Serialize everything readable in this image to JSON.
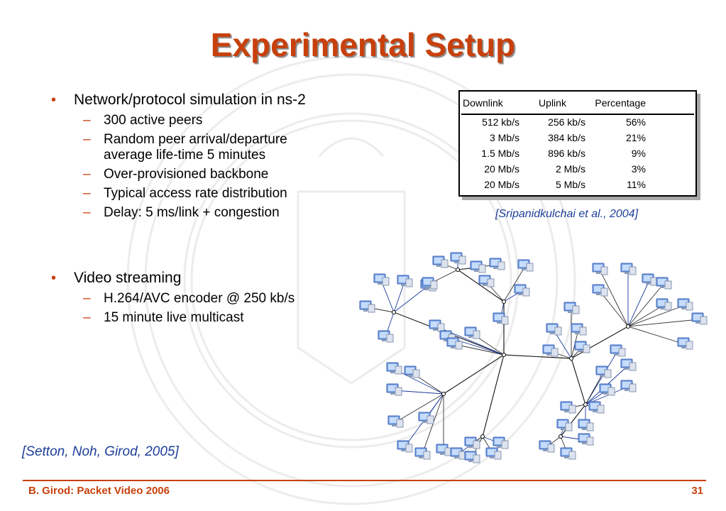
{
  "title": "Experimental Setup",
  "bullets": [
    {
      "text": "Network/protocol simulation in ns-2",
      "subs": [
        "300 active peers",
        "Random peer arrival/departure",
        "average life-time 5 minutes",
        "Over-provisioned backbone",
        "Typical access rate distribution",
        "Delay: 5 ms/link + congestion"
      ]
    },
    {
      "text": "Video streaming",
      "subs": [
        "H.264/AVC encoder @ 250 kb/s",
        "15 minute live multicast"
      ]
    }
  ],
  "table": {
    "headers": [
      "Downlink",
      "Uplink",
      "Percentage"
    ],
    "rows": [
      [
        "512 kb/s",
        "256 kb/s",
        "56%"
      ],
      [
        "3 Mb/s",
        "384 kb/s",
        "21%"
      ],
      [
        "1.5 Mb/s",
        "896 kb/s",
        "9%"
      ],
      [
        "20 Mb/s",
        "2 Mb/s",
        "3%"
      ],
      [
        "20 Mb/s",
        "5 Mb/s",
        "11%"
      ]
    ]
  },
  "citation_table": "[Sripanidkulchai et al., 2004]",
  "citation_main": "[Setton, Noh, Girod, 2005]",
  "footer": {
    "left": "B. Girod: Packet Video 2006",
    "page": "31"
  },
  "colors": {
    "accent": "#c8400c",
    "citation": "#1d3f99"
  },
  "icons": {
    "peer": "computer-monitor-icon",
    "background": "university-seal"
  }
}
